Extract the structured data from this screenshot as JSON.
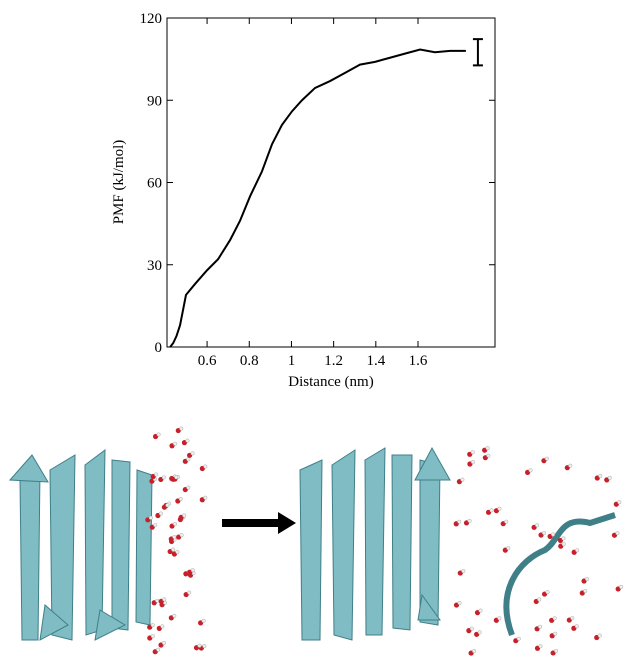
{
  "chart_data": {
    "type": "line",
    "x_label": "Distance (nm)",
    "y_label": "PMF (kJ/mol)",
    "x": [
      0.425,
      0.44,
      0.455,
      0.472,
      0.5,
      0.543,
      0.6,
      0.652,
      0.709,
      0.756,
      0.804,
      0.86,
      0.908,
      0.955,
      1.003,
      1.05,
      1.112,
      1.183,
      1.254,
      1.325,
      1.396,
      1.467,
      1.538,
      1.61,
      1.68,
      1.752,
      1.827
    ],
    "series": [
      {
        "color": "#000000",
        "values": [
          0,
          1.5,
          4,
          8,
          19,
          23,
          28,
          32,
          39,
          46,
          55,
          64,
          74,
          81,
          86,
          90,
          94.5,
          97,
          100,
          103,
          104,
          105.5,
          107,
          108.5,
          107.5,
          108,
          108
        ]
      }
    ],
    "error_bar": {
      "x": 1.884,
      "value": 107.5,
      "error": 4.8
    },
    "xlim": [
      0.41,
      1.965
    ],
    "ylim": [
      0,
      120
    ],
    "xticks": [
      0.6,
      0.8,
      1,
      1.2,
      1.4,
      1.6
    ],
    "yticks": [
      0,
      30,
      60,
      90,
      120
    ]
  }
}
